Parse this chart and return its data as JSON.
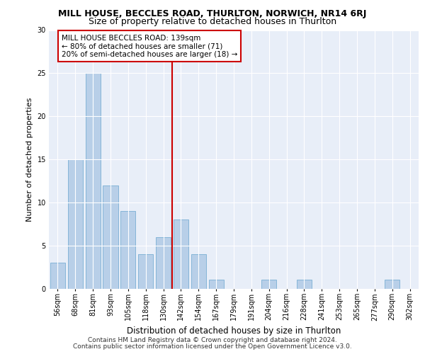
{
  "title": "MILL HOUSE, BECCLES ROAD, THURLTON, NORWICH, NR14 6RJ",
  "subtitle": "Size of property relative to detached houses in Thurlton",
  "xlabel": "Distribution of detached houses by size in Thurlton",
  "ylabel": "Number of detached properties",
  "categories": [
    "56sqm",
    "68sqm",
    "81sqm",
    "93sqm",
    "105sqm",
    "118sqm",
    "130sqm",
    "142sqm",
    "154sqm",
    "167sqm",
    "179sqm",
    "191sqm",
    "204sqm",
    "216sqm",
    "228sqm",
    "241sqm",
    "253sqm",
    "265sqm",
    "277sqm",
    "290sqm",
    "302sqm"
  ],
  "values": [
    3,
    15,
    25,
    12,
    9,
    4,
    6,
    8,
    4,
    1,
    0,
    0,
    1,
    0,
    1,
    0,
    0,
    0,
    0,
    1,
    0
  ],
  "bar_color": "#b8cfe8",
  "bar_edge_color": "#7aafd4",
  "vline_color": "#cc0000",
  "vline_x": 6.5,
  "annotation_title": "MILL HOUSE BECCLES ROAD: 139sqm",
  "annotation_line1": "← 80% of detached houses are smaller (71)",
  "annotation_line2": "20% of semi-detached houses are larger (18) →",
  "annotation_box_facecolor": "#ffffff",
  "annotation_box_edgecolor": "#cc0000",
  "ylim": [
    0,
    30
  ],
  "yticks": [
    0,
    5,
    10,
    15,
    20,
    25,
    30
  ],
  "plot_bg_color": "#e8eef8",
  "fig_bg_color": "#ffffff",
  "footer_line1": "Contains HM Land Registry data © Crown copyright and database right 2024.",
  "footer_line2": "Contains public sector information licensed under the Open Government Licence v3.0.",
  "title_fontsize": 9,
  "subtitle_fontsize": 9,
  "ylabel_fontsize": 8,
  "xlabel_fontsize": 8.5,
  "tick_fontsize": 7,
  "annot_fontsize": 7.5,
  "footer_fontsize": 6.5
}
